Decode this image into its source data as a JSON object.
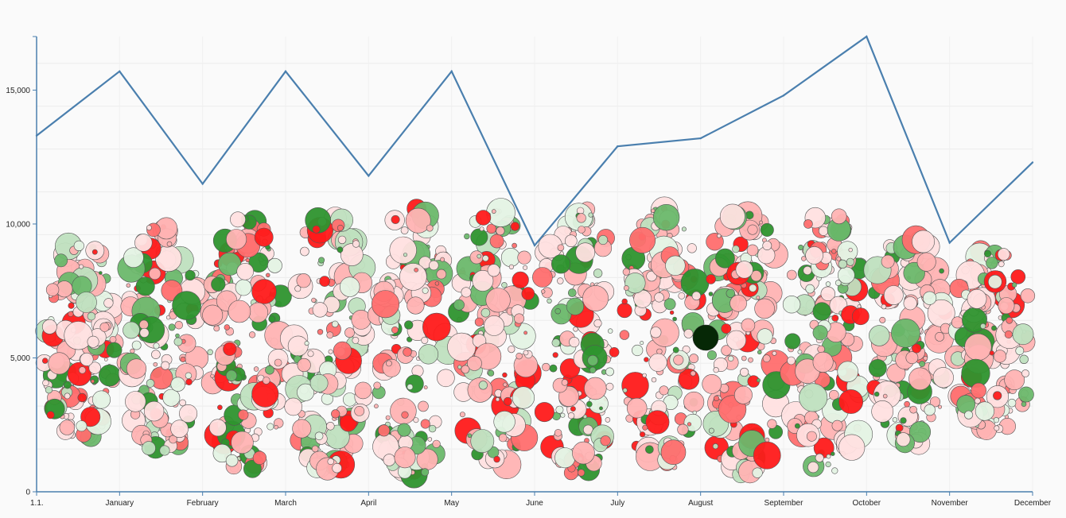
{
  "chart_data": {
    "type": "line",
    "title": "",
    "xlabel": "",
    "ylabel": "",
    "ylim": [
      0,
      17000
    ],
    "y_ticks": [
      0,
      5000,
      10000,
      15000
    ],
    "y_tick_labels": [
      "0",
      "5,000",
      "10,000",
      "15,000"
    ],
    "x_tick_labels": [
      "1.1.",
      "January",
      "February",
      "March",
      "April",
      "May",
      "June",
      "July",
      "August",
      "September",
      "October",
      "November",
      "December"
    ],
    "grid": true,
    "series": [
      {
        "color": "#4a7fae",
        "values": [
          13300,
          15700,
          11500,
          15700,
          11800,
          15700,
          9200,
          12900,
          13200,
          14800,
          17000,
          9300,
          12300
        ]
      }
    ],
    "bubbles": {
      "type": "scatter",
      "palette": {
        "strong_red": "#ff1a1a",
        "red": "#ff6e6e",
        "light_red": "#ffb3b3",
        "pale_red": "#ffe0e0",
        "pale_green": "#e4f3e4",
        "light_green": "#bfe0bf",
        "green": "#6cb86c",
        "strong_green": "#2e942e",
        "dark": "#062806"
      },
      "clusters": [
        {
          "month": "January",
          "y_range": [
            2000,
            9200
          ]
        },
        {
          "month": "February",
          "y_range": [
            1500,
            9900
          ]
        },
        {
          "month": "March",
          "y_range": [
            800,
            10200
          ]
        },
        {
          "month": "April",
          "y_range": [
            600,
            10300
          ]
        },
        {
          "month": "May",
          "y_range": [
            500,
            10600
          ]
        },
        {
          "month": "June",
          "y_range": [
            900,
            10500
          ]
        },
        {
          "month": "July",
          "y_range": [
            700,
            10600
          ]
        },
        {
          "month": "August",
          "y_range": [
            900,
            10600
          ]
        },
        {
          "month": "September",
          "y_range": [
            600,
            10500
          ]
        },
        {
          "month": "October",
          "y_range": [
            700,
            10400
          ]
        },
        {
          "month": "November",
          "y_range": [
            1800,
            9600
          ]
        },
        {
          "month": "December",
          "y_range": [
            2300,
            9000
          ]
        }
      ]
    }
  }
}
